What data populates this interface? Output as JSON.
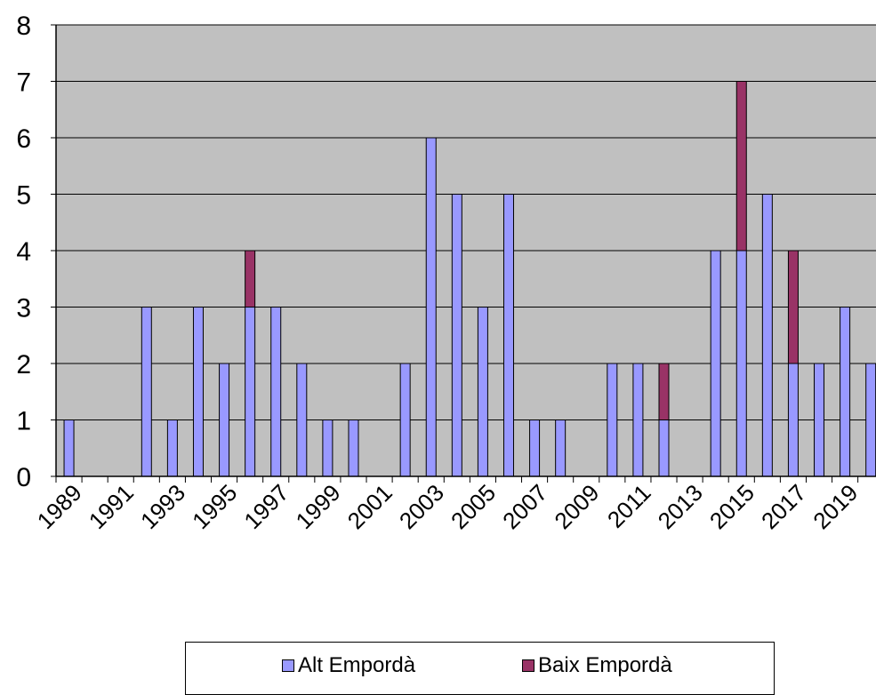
{
  "colors": {
    "plot_background": "#c0c0c0",
    "alt_emporda": "#9999ff",
    "baix_emporda": "#993366",
    "gridline": "#000000"
  },
  "chart_data": {
    "type": "bar",
    "stacked": true,
    "x": [
      1989,
      1990,
      1991,
      1992,
      1993,
      1994,
      1995,
      1996,
      1997,
      1998,
      1999,
      2000,
      2001,
      2002,
      2003,
      2004,
      2005,
      2006,
      2007,
      2008,
      2009,
      2010,
      2011,
      2012,
      2013,
      2014,
      2015,
      2016,
      2017,
      2018,
      2019,
      2020
    ],
    "x_tick_labels": [
      "1989",
      "1991",
      "1993",
      "1995",
      "1997",
      "1999",
      "2001",
      "2003",
      "2005",
      "2007",
      "2009",
      "2011",
      "2013",
      "2015",
      "2017",
      "2019"
    ],
    "series": [
      {
        "name": "Alt Empordà",
        "color": "#9999ff",
        "values": [
          1,
          0,
          0,
          3,
          1,
          3,
          2,
          3,
          3,
          2,
          1,
          1,
          0,
          2,
          6,
          5,
          3,
          5,
          1,
          1,
          0,
          2,
          2,
          1,
          0,
          4,
          4,
          5,
          2,
          2,
          3,
          2
        ]
      },
      {
        "name": "Baix Empordà",
        "color": "#993366",
        "values": [
          0,
          0,
          0,
          0,
          0,
          0,
          0,
          1,
          0,
          0,
          0,
          0,
          0,
          0,
          0,
          0,
          0,
          0,
          0,
          0,
          0,
          0,
          0,
          1,
          0,
          0,
          3,
          0,
          2,
          0,
          0,
          0
        ]
      }
    ],
    "ylim": [
      0,
      8
    ],
    "y_ticks": [
      "0",
      "1",
      "2",
      "3",
      "4",
      "5",
      "6",
      "7",
      "8"
    ],
    "grid": true,
    "legend_position": "bottom"
  }
}
